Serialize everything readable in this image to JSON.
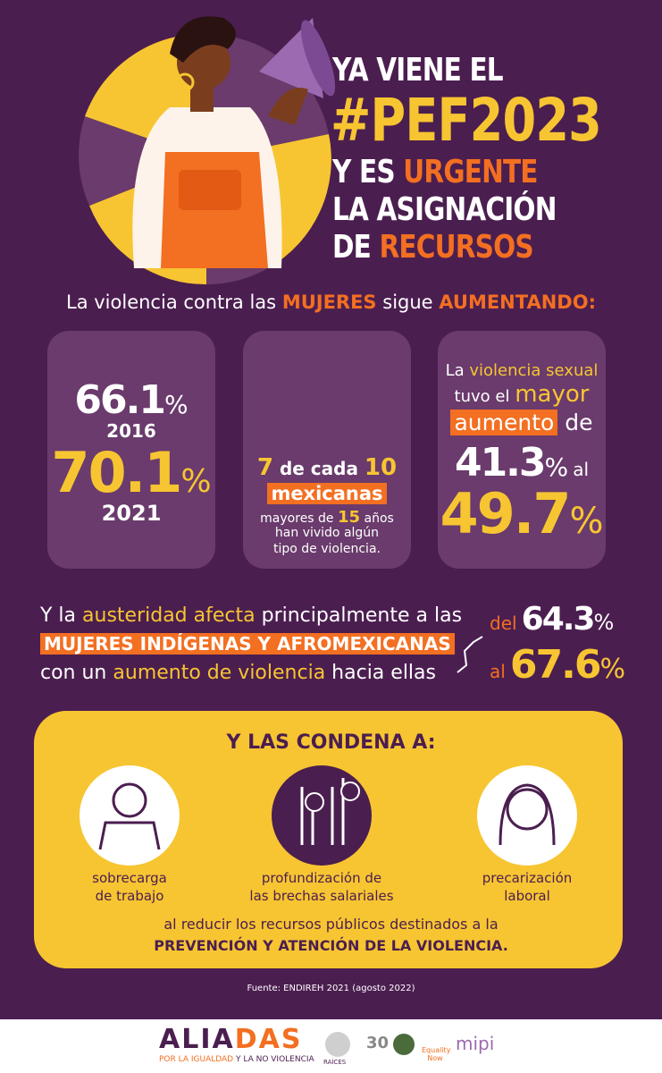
{
  "header": {
    "title": {
      "l1": "YA VIENE EL",
      "l2": "#PEF2023",
      "l3a": "Y ES",
      "l3b": "URGENTE",
      "l4": "LA ASIGNACIÓN",
      "l5a": "DE",
      "l5b": "RECURSOS"
    }
  },
  "intro": [
    "La violencia contra las",
    "MUJERES",
    "sigue",
    "AUMENTANDO:"
  ],
  "cards": [
    {
      "v1": "66.1",
      "u1": "%",
      "y1": "2016",
      "v2": "70.1",
      "u2": "%",
      "y2": "2021"
    },
    {
      "n": "7",
      "of": "de cada",
      "total": "10",
      "who": "mexicanas",
      "l1": "mayores de",
      "age": "15",
      "l1b": "años",
      "l2": "han vivido algún",
      "l3": "tipo de violencia."
    },
    {
      "a": "La",
      "b": "violencia sexual",
      "c": "tuvo el",
      "d": "mayor",
      "e": "aumento",
      "f": "de",
      "v1": "41.3",
      "u1": "%",
      "g": "al",
      "v2": "49.7",
      "u2": "%"
    }
  ],
  "austerity": {
    "a": "Y la",
    "b": "austeridad afecta",
    "c": "principalmente a las",
    "d": "MUJERES INDÍGENAS Y AFROMEXICANAS",
    "e": "con un",
    "f": "aumento de violencia",
    "g": "hacia ellas",
    "from_label": "del",
    "from": "64.3",
    "from_unit": "%",
    "to_label": "al",
    "to": "67.6",
    "to_unit": "%"
  },
  "condena": {
    "title": "Y LAS CONDENA A:",
    "items": [
      [
        "sobrecarga",
        "de trabajo"
      ],
      [
        "profundización de",
        "las brechas salariales"
      ],
      [
        "precarización",
        "laboral"
      ]
    ],
    "closing1": "al reducir los recursos públicos destinados a la",
    "closing2": "PREVENCIÓN Y ATENCIÓN DE LA VIOLENCIA."
  },
  "source": "Fuente:  ENDIREH 2021 (agosto 2022)",
  "footer": {
    "brand_a": "ALIA",
    "brand_b": "DAS",
    "tagline_a": "POR LA IGUALDAD",
    "tagline_b": "Y LA NO VIOLENCIA",
    "logos": [
      "RAÍCES",
      "30",
      "Equality Now",
      "mipi"
    ]
  }
}
